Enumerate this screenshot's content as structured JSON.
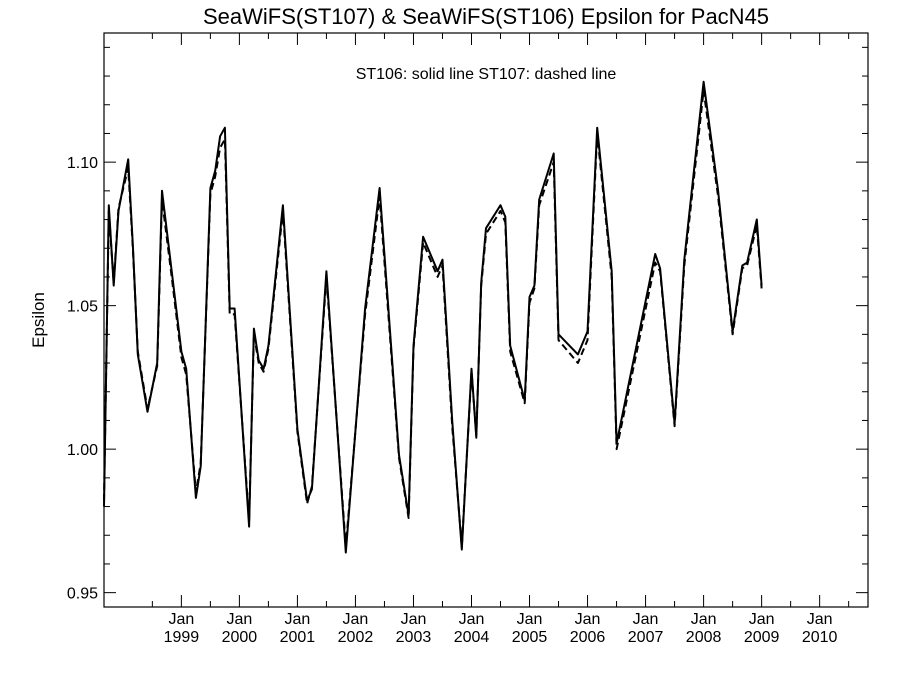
{
  "chart_data": {
    "type": "line",
    "title": "SeaWiFS(ST107) & SeaWiFS(ST106)  Epsilon for PacN45",
    "annotation": "ST106: solid line   ST107: dashed line",
    "ylabel": "Epsilon",
    "xlabel": "",
    "xlim": [
      "1997-09",
      "2010-11"
    ],
    "ylim": [
      0.945,
      1.145
    ],
    "grid": false,
    "y_ticks": [
      {
        "value": 0.95,
        "label": "0.95"
      },
      {
        "value": 1.0,
        "label": "1.00"
      },
      {
        "value": 1.05,
        "label": "1.05"
      },
      {
        "value": 1.1,
        "label": "1.10"
      }
    ],
    "x_ticks": [
      {
        "date": "1999-01",
        "line1": "Jan",
        "line2": "1999"
      },
      {
        "date": "2000-01",
        "line1": "Jan",
        "line2": "2000"
      },
      {
        "date": "2001-01",
        "line1": "Jan",
        "line2": "2001"
      },
      {
        "date": "2002-01",
        "line1": "Jan",
        "line2": "2002"
      },
      {
        "date": "2003-01",
        "line1": "Jan",
        "line2": "2003"
      },
      {
        "date": "2004-01",
        "line1": "Jan",
        "line2": "2004"
      },
      {
        "date": "2005-01",
        "line1": "Jan",
        "line2": "2005"
      },
      {
        "date": "2006-01",
        "line1": "Jan",
        "line2": "2006"
      },
      {
        "date": "2007-01",
        "line1": "Jan",
        "line2": "2007"
      },
      {
        "date": "2008-01",
        "line1": "Jan",
        "line2": "2008"
      },
      {
        "date": "2009-01",
        "line1": "Jan",
        "line2": "2009"
      },
      {
        "date": "2010-01",
        "line1": "Jan",
        "line2": "2010"
      }
    ],
    "series": [
      {
        "name": "ST106",
        "style": "solid",
        "color": "#000000",
        "points": [
          [
            "1997-09",
            0.98
          ],
          [
            "1997-10",
            1.085
          ],
          [
            "1997-11",
            1.057
          ],
          [
            "1997-12",
            1.083
          ],
          [
            "1998-02",
            1.101
          ],
          [
            "1998-03",
            1.07
          ],
          [
            "1998-04",
            1.033
          ],
          [
            "1998-06",
            1.013
          ],
          [
            "1998-08",
            1.03
          ],
          [
            "1998-09",
            1.09
          ],
          [
            "1998-11",
            1.062
          ],
          [
            "1999-01",
            1.034
          ],
          [
            "1999-02",
            1.028
          ],
          [
            "1999-04",
            0.983
          ],
          [
            "1999-05",
            0.994
          ],
          [
            "1999-07",
            1.091
          ],
          [
            "1999-08",
            1.097
          ],
          [
            "1999-09",
            1.109
          ],
          [
            "1999-10",
            1.112
          ],
          [
            "1999-11",
            1.049
          ],
          [
            "1999-12",
            1.049
          ],
          [
            "2000-03",
            0.973
          ],
          [
            "2000-04",
            1.042
          ],
          [
            "2000-05",
            1.031
          ],
          [
            "2000-06",
            1.028
          ],
          [
            "2000-07",
            1.036
          ],
          [
            "2000-10",
            1.085
          ],
          [
            "2001-01",
            1.007
          ],
          [
            "2001-03",
            0.982
          ],
          [
            "2001-04",
            0.986
          ],
          [
            "2001-07",
            1.062
          ],
          [
            "2001-11",
            0.964
          ],
          [
            "2002-03",
            1.049
          ],
          [
            "2002-06",
            1.091
          ],
          [
            "2002-10",
            0.998
          ],
          [
            "2002-12",
            0.977
          ],
          [
            "2003-01",
            1.036
          ],
          [
            "2003-03",
            1.074
          ],
          [
            "2003-06",
            1.062
          ],
          [
            "2003-07",
            1.066
          ],
          [
            "2003-09",
            1.01
          ],
          [
            "2003-11",
            0.965
          ],
          [
            "2004-01",
            1.028
          ],
          [
            "2004-02",
            1.004
          ],
          [
            "2004-03",
            1.058
          ],
          [
            "2004-04",
            1.077
          ],
          [
            "2004-07",
            1.085
          ],
          [
            "2004-08",
            1.081
          ],
          [
            "2004-09",
            1.036
          ],
          [
            "2004-12",
            1.017
          ],
          [
            "2005-01",
            1.053
          ],
          [
            "2005-02",
            1.057
          ],
          [
            "2005-03",
            1.087
          ],
          [
            "2005-06",
            1.103
          ],
          [
            "2005-07",
            1.04
          ],
          [
            "2005-11",
            1.033
          ],
          [
            "2006-01",
            1.041
          ],
          [
            "2006-03",
            1.112
          ],
          [
            "2006-06",
            1.062
          ],
          [
            "2006-07",
            1.002
          ],
          [
            "2007-03",
            1.068
          ],
          [
            "2007-04",
            1.063
          ],
          [
            "2007-07",
            1.009
          ],
          [
            "2007-09",
            1.066
          ],
          [
            "2008-01",
            1.128
          ],
          [
            "2008-04",
            1.09
          ],
          [
            "2008-07",
            1.041
          ],
          [
            "2008-09",
            1.064
          ],
          [
            "2008-10",
            1.065
          ],
          [
            "2008-12",
            1.08
          ],
          [
            "2009-01",
            1.057
          ]
        ]
      },
      {
        "name": "ST107",
        "style": "dashed",
        "color": "#000000",
        "points": [
          [
            "1997-09",
            0.982
          ],
          [
            "1997-10",
            1.083
          ],
          [
            "1997-11",
            1.058
          ],
          [
            "1997-12",
            1.084
          ],
          [
            "1998-02",
            1.098
          ],
          [
            "1998-03",
            1.069
          ],
          [
            "1998-04",
            1.034
          ],
          [
            "1998-06",
            1.014
          ],
          [
            "1998-08",
            1.029
          ],
          [
            "1998-09",
            1.087
          ],
          [
            "1998-11",
            1.06
          ],
          [
            "1999-01",
            1.032
          ],
          [
            "1999-02",
            1.026
          ],
          [
            "1999-04",
            0.985
          ],
          [
            "1999-05",
            0.995
          ],
          [
            "1999-07",
            1.089
          ],
          [
            "1999-08",
            1.095
          ],
          [
            "1999-09",
            1.105
          ],
          [
            "1999-10",
            1.108
          ],
          [
            "1999-11",
            1.047
          ],
          [
            "1999-12",
            1.047
          ],
          [
            "2000-03",
            0.975
          ],
          [
            "2000-04",
            1.04
          ],
          [
            "2000-05",
            1.03
          ],
          [
            "2000-06",
            1.027
          ],
          [
            "2000-07",
            1.035
          ],
          [
            "2000-10",
            1.083
          ],
          [
            "2001-01",
            1.006
          ],
          [
            "2001-03",
            0.981
          ],
          [
            "2001-04",
            0.987
          ],
          [
            "2001-07",
            1.06
          ],
          [
            "2001-11",
            0.966
          ],
          [
            "2002-03",
            1.047
          ],
          [
            "2002-06",
            1.088
          ],
          [
            "2002-10",
            0.997
          ],
          [
            "2002-12",
            0.976
          ],
          [
            "2003-01",
            1.035
          ],
          [
            "2003-03",
            1.072
          ],
          [
            "2003-06",
            1.06
          ],
          [
            "2003-07",
            1.064
          ],
          [
            "2003-09",
            1.008
          ],
          [
            "2003-11",
            0.966
          ],
          [
            "2004-01",
            1.027
          ],
          [
            "2004-02",
            1.005
          ],
          [
            "2004-03",
            1.057
          ],
          [
            "2004-04",
            1.075
          ],
          [
            "2004-07",
            1.083
          ],
          [
            "2004-08",
            1.079
          ],
          [
            "2004-09",
            1.034
          ],
          [
            "2004-12",
            1.016
          ],
          [
            "2005-01",
            1.051
          ],
          [
            "2005-02",
            1.056
          ],
          [
            "2005-03",
            1.085
          ],
          [
            "2005-06",
            1.1
          ],
          [
            "2005-07",
            1.038
          ],
          [
            "2005-11",
            1.03
          ],
          [
            "2006-01",
            1.038
          ],
          [
            "2006-03",
            1.11
          ],
          [
            "2006-06",
            1.06
          ],
          [
            "2006-07",
            1.0
          ],
          [
            "2007-03",
            1.065
          ],
          [
            "2007-04",
            1.062
          ],
          [
            "2007-07",
            1.008
          ],
          [
            "2007-09",
            1.064
          ],
          [
            "2008-01",
            1.125
          ],
          [
            "2008-04",
            1.088
          ],
          [
            "2008-07",
            1.04
          ],
          [
            "2008-09",
            1.063
          ],
          [
            "2008-10",
            1.064
          ],
          [
            "2008-12",
            1.078
          ],
          [
            "2009-01",
            1.056
          ]
        ]
      }
    ]
  }
}
